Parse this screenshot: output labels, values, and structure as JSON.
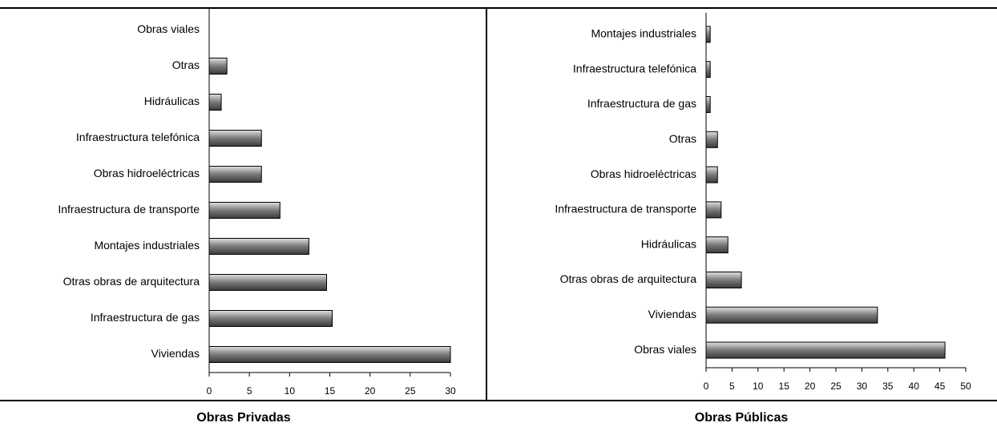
{
  "chart_data": [
    {
      "type": "bar",
      "orientation": "horizontal",
      "title": "Obras Privadas",
      "categories": [
        "Obras viales",
        "Otras",
        "Hidráulicas",
        "Infraestructura telefónica",
        "Obras hidroeléctricas",
        "Infraestructura de transporte",
        "Montajes industriales",
        "Otras obras de arquitectura",
        "Infraestructura de gas",
        "Viviendas"
      ],
      "values": [
        0,
        2.2,
        1.5,
        6.5,
        6.5,
        8.8,
        12.4,
        14.6,
        15.3,
        30
      ],
      "xlim": [
        0,
        30
      ],
      "xticks": [
        0,
        5,
        10,
        15,
        20,
        25,
        30
      ],
      "color": "#7a7a7a"
    },
    {
      "type": "bar",
      "orientation": "horizontal",
      "title": "Obras Públicas",
      "categories": [
        "Montajes industriales",
        "Infraestructura telefónica",
        "Infraestructura de gas",
        "Otras",
        "Obras hidroeléctricas",
        "Infraestructura de transporte",
        "Hidráulicas",
        "Otras obras de arquitectura",
        "Viviendas",
        "Obras viales"
      ],
      "values": [
        0.8,
        0.8,
        0.8,
        2.2,
        2.2,
        2.9,
        4.2,
        6.8,
        33,
        46
      ],
      "xlim": [
        0,
        50
      ],
      "xticks": [
        0,
        5,
        10,
        15,
        20,
        25,
        30,
        35,
        40,
        45,
        50
      ],
      "color": "#7a7a7a"
    }
  ]
}
